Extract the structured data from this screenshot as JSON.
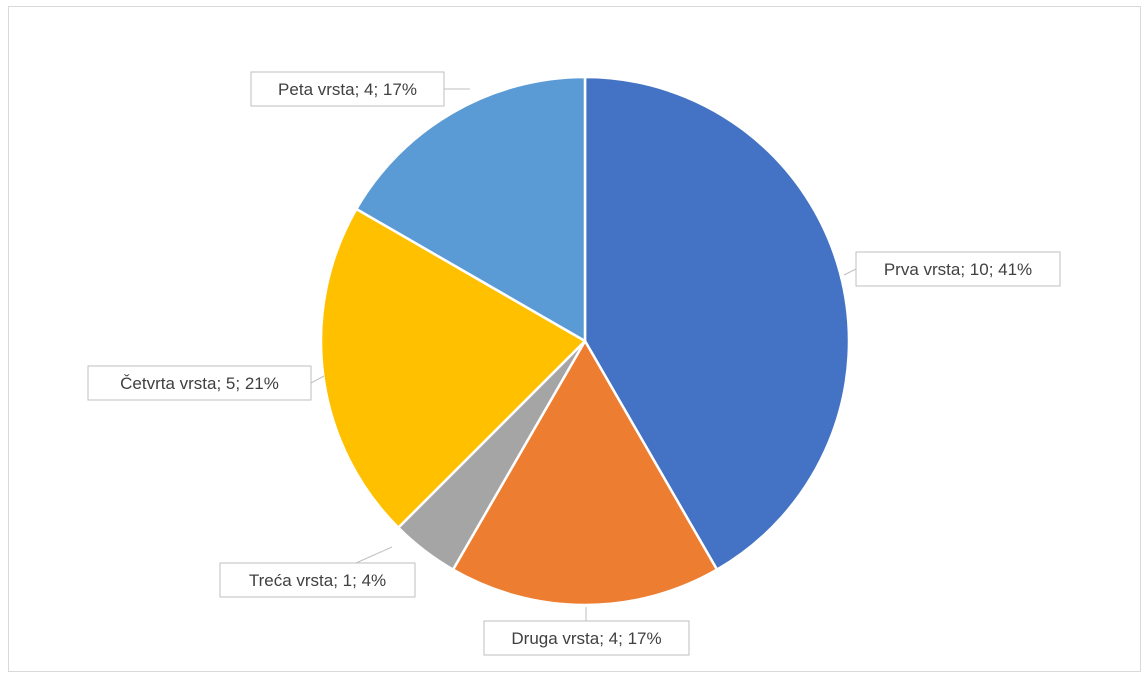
{
  "chart_data": {
    "type": "pie",
    "title": "",
    "categories": [
      "Prva vrsta",
      "Druga vrsta",
      "Treća vrsta",
      "Četvrta vrsta",
      "Peta vrsta"
    ],
    "values": [
      10,
      4,
      1,
      5,
      4
    ],
    "percentages": [
      41,
      17,
      4,
      21,
      17
    ],
    "data_labels": [
      "Prva vrsta; 10; 41%",
      "Druga vrsta; 4; 17%",
      "Treća vrsta; 1; 4%",
      "Četvrta vrsta; 5; 21%",
      "Peta vrsta; 4; 17%"
    ],
    "colors": [
      "#4472C4",
      "#ED7D31",
      "#A5A5A5",
      "#FFC000",
      "#5B9BD5"
    ],
    "legend": "none",
    "start_angle": "12 o'clock",
    "direction": "clockwise"
  }
}
